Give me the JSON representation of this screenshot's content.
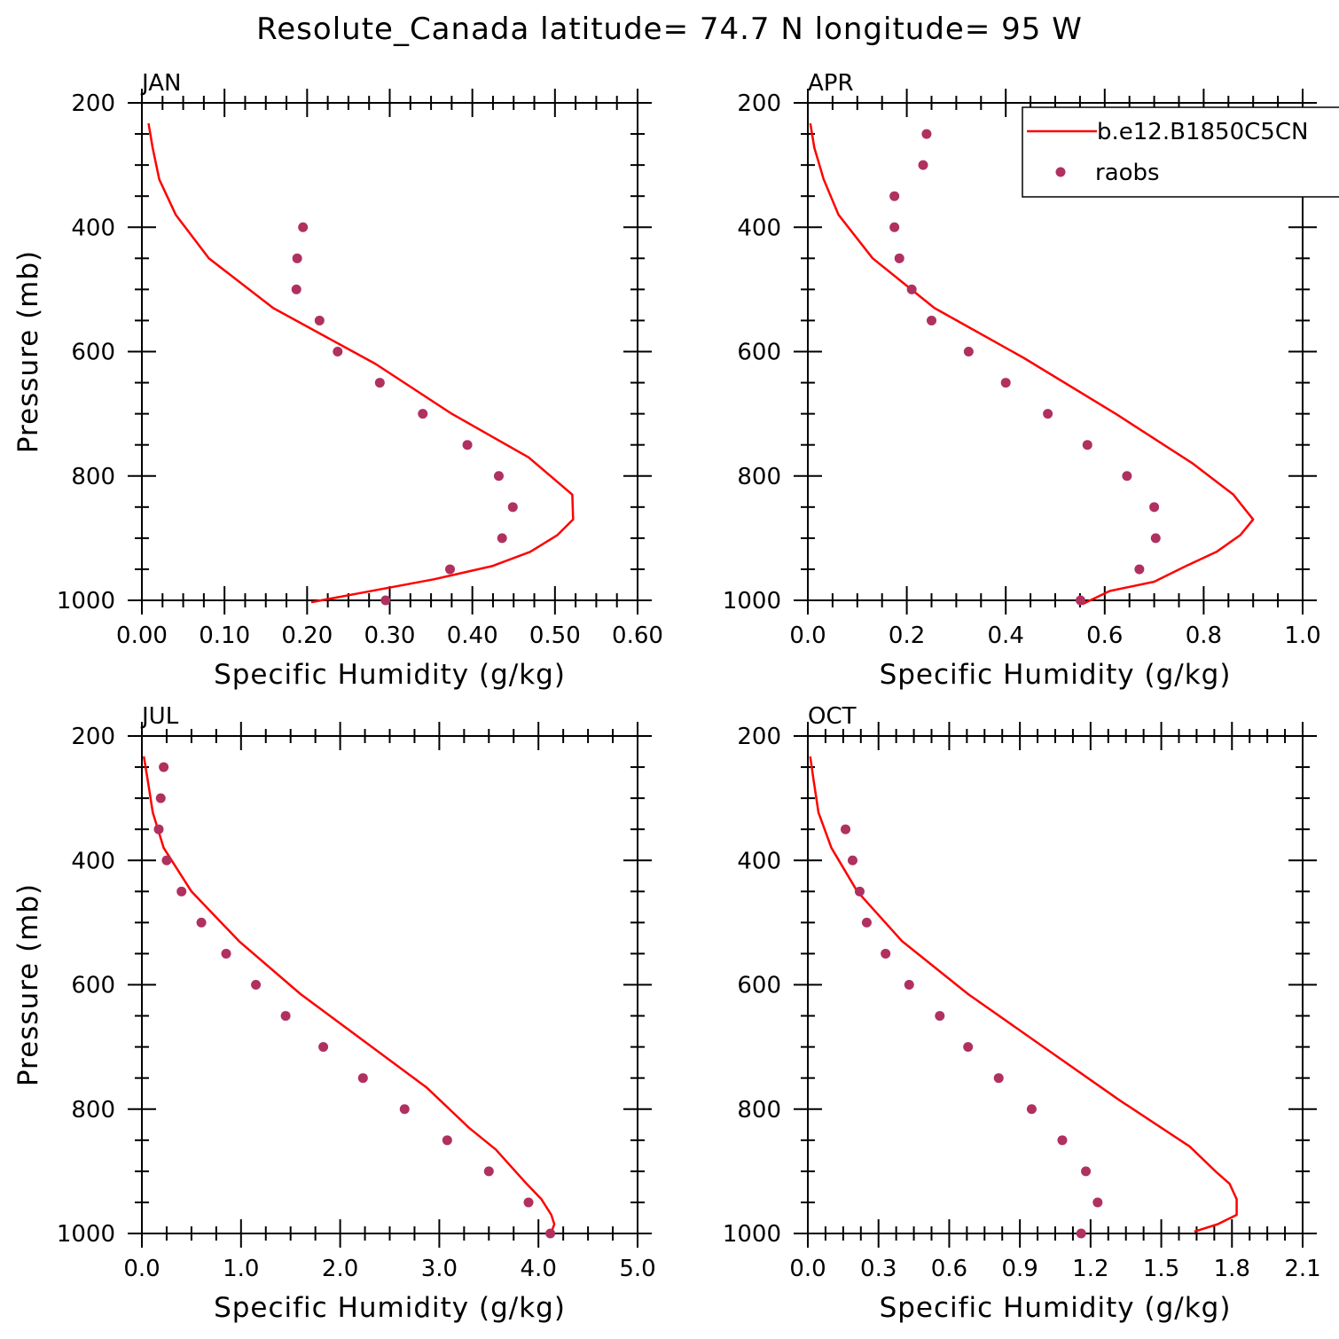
{
  "figure": {
    "title": "Resolute_Canada  latitude= 74.7 N longitude= 95 W"
  },
  "legend": {
    "entries": [
      {
        "label": "b.e12.B1850C5CN",
        "kind": "line",
        "color": "#ff0000"
      },
      {
        "label": "raobs",
        "kind": "marker",
        "color": "#b03060"
      }
    ]
  },
  "colors": {
    "model": "#ff0000",
    "raobs": "#b03060"
  },
  "chart_data": [
    {
      "type": "line",
      "panel": "JAN",
      "xlabel": "Specific Humidity (g/kg)",
      "ylabel": "Pressure (mb)",
      "xlim": [
        0,
        0.6
      ],
      "ylim": [
        200,
        1000
      ],
      "y_inverted": true,
      "xticks": [
        0,
        0.1,
        0.2,
        0.3,
        0.4,
        0.5,
        0.6
      ],
      "xtick_labels": [
        "0.00",
        "0.10",
        "0.20",
        "0.30",
        "0.40",
        "0.50",
        "0.60"
      ],
      "yticks": [
        200,
        400,
        600,
        800,
        1000
      ],
      "ytick_labels": [
        "200",
        "400",
        "600",
        "800",
        "1000"
      ],
      "series": [
        {
          "name": "b.e12.B1850C5CN",
          "kind": "line",
          "x": [
            0.008,
            0.013,
            0.021,
            0.041,
            0.081,
            0.159,
            0.283,
            0.375,
            0.468,
            0.521,
            0.522,
            0.503,
            0.47,
            0.424,
            0.354,
            0.205
          ],
          "y": [
            233,
            272,
            323,
            380,
            450,
            530,
            620,
            700,
            770,
            830,
            870,
            895,
            922,
            945,
            966,
            1003
          ]
        },
        {
          "name": "raobs",
          "kind": "marker",
          "x": [
            0.195,
            0.188,
            0.187,
            0.215,
            0.237,
            0.288,
            0.34,
            0.394,
            0.432,
            0.449,
            0.436,
            0.373,
            0.295
          ],
          "y": [
            400,
            450,
            500,
            550,
            600,
            650,
            700,
            750,
            800,
            850,
            900,
            950,
            1000
          ]
        }
      ]
    },
    {
      "type": "line",
      "panel": "APR",
      "xlabel": "Specific Humidity (g/kg)",
      "ylabel": "",
      "xlim": [
        0,
        1.0
      ],
      "ylim": [
        200,
        1000
      ],
      "y_inverted": true,
      "xticks": [
        0,
        0.2,
        0.4,
        0.6,
        0.8,
        1.0
      ],
      "xtick_labels": [
        "0.0",
        "0.2",
        "0.4",
        "0.6",
        "0.8",
        "1.0"
      ],
      "yticks": [
        200,
        400,
        600,
        800,
        1000
      ],
      "ytick_labels": [
        "200",
        "400",
        "600",
        "800",
        "1000"
      ],
      "series": [
        {
          "name": "b.e12.B1850C5CN",
          "kind": "line",
          "x": [
            0.005,
            0.013,
            0.032,
            0.062,
            0.131,
            0.256,
            0.436,
            0.622,
            0.778,
            0.86,
            0.9,
            0.874,
            0.826,
            0.764,
            0.7,
            0.61,
            0.555
          ],
          "y": [
            233,
            272,
            323,
            380,
            450,
            530,
            610,
            700,
            780,
            830,
            870,
            895,
            922,
            945,
            970,
            985,
            1006
          ]
        },
        {
          "name": "raobs",
          "kind": "marker",
          "x": [
            0.24,
            0.233,
            0.175,
            0.175,
            0.185,
            0.21,
            0.25,
            0.325,
            0.4,
            0.485,
            0.565,
            0.645,
            0.7,
            0.703,
            0.67,
            0.551
          ],
          "y": [
            250,
            300,
            350,
            400,
            450,
            500,
            550,
            600,
            650,
            700,
            750,
            800,
            850,
            900,
            950,
            1000
          ]
        }
      ]
    },
    {
      "type": "line",
      "panel": "JUL",
      "xlabel": "Specific Humidity (g/kg)",
      "ylabel": "Pressure (mb)",
      "xlim": [
        0,
        5.0
      ],
      "ylim": [
        200,
        1000
      ],
      "y_inverted": true,
      "xticks": [
        0,
        1,
        2,
        3,
        4,
        5
      ],
      "xtick_labels": [
        "0.0",
        "1.0",
        "2.0",
        "3.0",
        "4.0",
        "5.0"
      ],
      "yticks": [
        200,
        400,
        600,
        800,
        1000
      ],
      "ytick_labels": [
        "200",
        "400",
        "600",
        "800",
        "1000"
      ],
      "series": [
        {
          "name": "b.e12.B1850C5CN",
          "kind": "line",
          "x": [
            0.02,
            0.06,
            0.11,
            0.22,
            0.5,
            0.98,
            1.6,
            2.87,
            3.3,
            3.57,
            3.88,
            4.03,
            4.13,
            4.16,
            4.12
          ],
          "y": [
            233,
            272,
            323,
            380,
            450,
            530,
            615,
            765,
            830,
            865,
            920,
            945,
            970,
            985,
            1003
          ]
        },
        {
          "name": "raobs",
          "kind": "marker",
          "x": [
            0.22,
            0.19,
            0.17,
            0.25,
            0.4,
            0.6,
            0.85,
            1.15,
            1.45,
            1.83,
            2.23,
            2.65,
            3.08,
            3.5,
            3.9,
            4.12
          ],
          "y": [
            250,
            300,
            350,
            400,
            450,
            500,
            550,
            600,
            650,
            700,
            750,
            800,
            850,
            900,
            950,
            1000
          ]
        }
      ]
    },
    {
      "type": "line",
      "panel": "OCT",
      "xlabel": "Specific Humidity (g/kg)",
      "ylabel": "",
      "xlim": [
        0,
        2.1
      ],
      "ylim": [
        200,
        1000
      ],
      "y_inverted": true,
      "xticks": [
        0,
        0.3,
        0.6,
        0.9,
        1.2,
        1.5,
        1.8,
        2.1
      ],
      "xtick_labels": [
        "0.0",
        "0.3",
        "0.6",
        "0.9",
        "1.2",
        "1.5",
        "1.8",
        "2.1"
      ],
      "yticks": [
        200,
        400,
        600,
        800,
        1000
      ],
      "ytick_labels": [
        "200",
        "400",
        "600",
        "800",
        "1000"
      ],
      "series": [
        {
          "name": "b.e12.B1850C5CN",
          "kind": "line",
          "x": [
            0.01,
            0.025,
            0.045,
            0.1,
            0.21,
            0.4,
            0.68,
            1.0,
            1.32,
            1.62,
            1.73,
            1.79,
            1.82,
            1.82,
            1.74,
            1.64
          ],
          "y": [
            233,
            272,
            323,
            380,
            450,
            530,
            615,
            700,
            785,
            860,
            900,
            920,
            945,
            970,
            985,
            997
          ]
        },
        {
          "name": "raobs",
          "kind": "marker",
          "x": [
            0.16,
            0.19,
            0.22,
            0.25,
            0.33,
            0.43,
            0.56,
            0.68,
            0.81,
            0.95,
            1.08,
            1.18,
            1.23,
            1.16
          ],
          "y": [
            350,
            400,
            450,
            500,
            550,
            600,
            650,
            700,
            750,
            800,
            850,
            900,
            950,
            1000
          ]
        }
      ]
    }
  ]
}
